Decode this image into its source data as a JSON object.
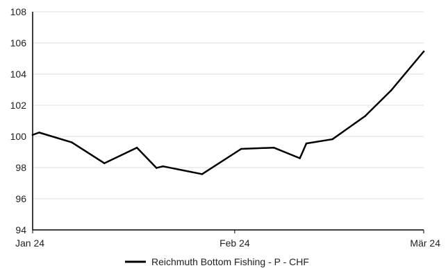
{
  "chart_data": {
    "type": "line",
    "title": "",
    "xlabel": "",
    "ylabel": "",
    "ylim": [
      94,
      108
    ],
    "yticks": [
      94,
      96,
      98,
      100,
      102,
      104,
      106,
      108
    ],
    "xlim": [
      "2024-01-01",
      "2024-03-01"
    ],
    "xticks": [
      {
        "date": "2024-01-01",
        "label": "Jan 24"
      },
      {
        "date": "2024-02-01",
        "label": "Feb 24"
      },
      {
        "date": "2024-03-01",
        "label": "Mär 24"
      }
    ],
    "grid": "horizontal",
    "legend_position": "bottom",
    "series": [
      {
        "name": "Reichmuth Bottom Fishing - P - CHF",
        "color": "#000000",
        "points": [
          {
            "x": "2024-01-01",
            "y": 100.1
          },
          {
            "x": "2024-01-02",
            "y": 100.25
          },
          {
            "x": "2024-01-07",
            "y": 99.62
          },
          {
            "x": "2024-01-12",
            "y": 98.28
          },
          {
            "x": "2024-01-17",
            "y": 99.28
          },
          {
            "x": "2024-01-20",
            "y": 97.98
          },
          {
            "x": "2024-01-21",
            "y": 98.08
          },
          {
            "x": "2024-01-27",
            "y": 97.58
          },
          {
            "x": "2024-02-02",
            "y": 99.2
          },
          {
            "x": "2024-02-07",
            "y": 99.28
          },
          {
            "x": "2024-02-11",
            "y": 98.6
          },
          {
            "x": "2024-02-12",
            "y": 99.55
          },
          {
            "x": "2024-02-16",
            "y": 99.82
          },
          {
            "x": "2024-02-21",
            "y": 101.3
          },
          {
            "x": "2024-02-25",
            "y": 102.95
          },
          {
            "x": "2024-03-01",
            "y": 105.45
          }
        ]
      }
    ]
  }
}
